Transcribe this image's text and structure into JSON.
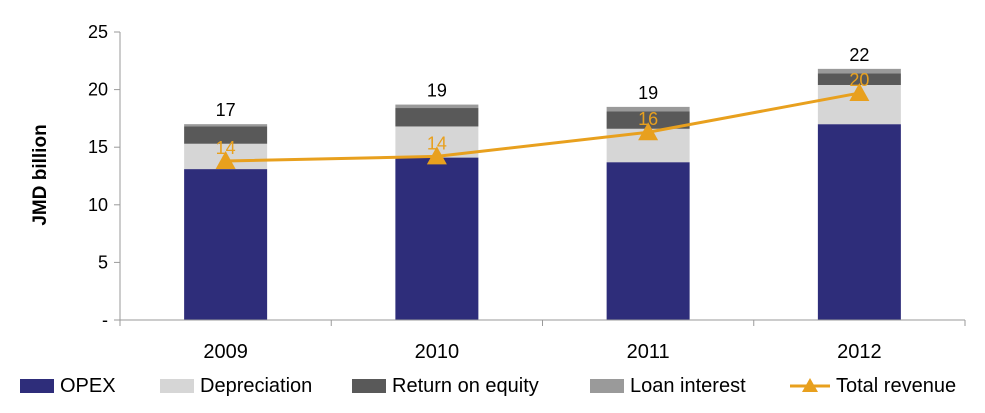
{
  "chart_data": {
    "type": "bar",
    "stacked": true,
    "categories": [
      "2009",
      "2010",
      "2011",
      "2012"
    ],
    "series": [
      {
        "name": "OPEX",
        "color": "#2E2D7A",
        "values": [
          13.1,
          14.1,
          13.7,
          17.0
        ]
      },
      {
        "name": "Depreciation",
        "color": "#D6D6D6",
        "values": [
          2.2,
          2.7,
          2.9,
          3.4
        ]
      },
      {
        "name": "Return on equity",
        "color": "#595959",
        "values": [
          1.5,
          1.6,
          1.5,
          1.0
        ]
      },
      {
        "name": "Loan interest",
        "color": "#9A9A9A",
        "values": [
          0.2,
          0.3,
          0.4,
          0.4
        ]
      }
    ],
    "totals": [
      "17",
      "19",
      "19",
      "22"
    ],
    "line_series": {
      "name": "Total revenue",
      "color": "#E8A01E",
      "marker": "triangle",
      "values": [
        13.8,
        14.2,
        16.3,
        19.7
      ],
      "labels": [
        "14",
        "14",
        "16",
        "20"
      ]
    },
    "ylabel": "JMD billion",
    "xlabel": "",
    "ylim": [
      0,
      25
    ],
    "yticks": [
      {
        "value": 0,
        "label": "-"
      },
      {
        "value": 5,
        "label": "5"
      },
      {
        "value": 10,
        "label": "10"
      },
      {
        "value": 15,
        "label": "15"
      },
      {
        "value": 20,
        "label": "20"
      },
      {
        "value": 25,
        "label": "25"
      }
    ],
    "grid": false,
    "legend_position": "bottom"
  }
}
